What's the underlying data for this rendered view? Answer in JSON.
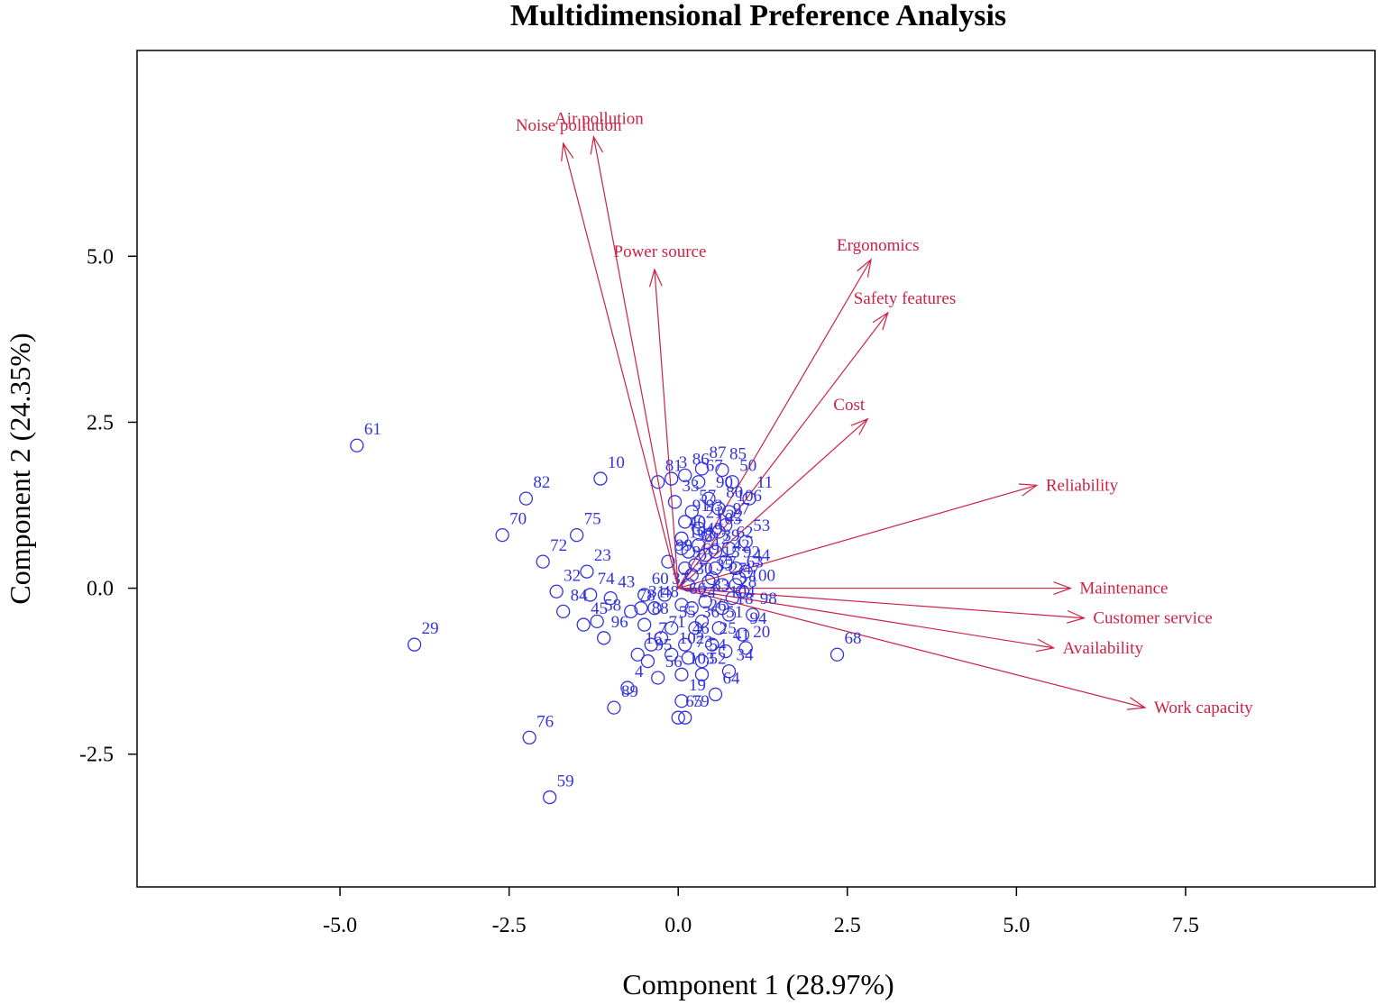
{
  "chart_data": {
    "type": "scatter",
    "subtype": "biplot",
    "title": "Multidimensional Preference Analysis",
    "xlabel": "Component 1 (28.97%)",
    "ylabel": "Component 2 (24.35%)",
    "xlim": [
      -8.0,
      10.3
    ],
    "ylim": [
      -4.5,
      8.1
    ],
    "xticks": [
      "-5.0",
      "-2.5",
      "0.0",
      "2.5",
      "5.0",
      "7.5"
    ],
    "yticks": [
      "-2.5",
      "0.0",
      "2.5",
      "5.0"
    ],
    "grid": false,
    "colors": {
      "points": "#3333dd",
      "vectors": "#cc2244",
      "axes": "#000000"
    },
    "vectors": [
      {
        "name": "Air pollution",
        "x": -1.25,
        "y": 6.8
      },
      {
        "name": "Noise pollution",
        "x": -1.7,
        "y": 6.7
      },
      {
        "name": "Power source",
        "x": -0.35,
        "y": 4.8
      },
      {
        "name": "Ergonomics",
        "x": 2.85,
        "y": 4.95
      },
      {
        "name": "Safety features",
        "x": 3.1,
        "y": 4.15
      },
      {
        "name": "Cost",
        "x": 2.8,
        "y": 2.55
      },
      {
        "name": "Reliability",
        "x": 5.3,
        "y": 1.55
      },
      {
        "name": "Maintenance",
        "x": 5.8,
        "y": 0.0
      },
      {
        "name": "Customer service",
        "x": 6.0,
        "y": -0.45
      },
      {
        "name": "Availability",
        "x": 5.55,
        "y": -0.9
      },
      {
        "name": "Work capacity",
        "x": 6.9,
        "y": -1.8
      }
    ],
    "points": [
      {
        "label": "61",
        "x": -4.75,
        "y": 2.15
      },
      {
        "label": "82",
        "x": -2.25,
        "y": 1.35
      },
      {
        "label": "70",
        "x": -2.6,
        "y": 0.8
      },
      {
        "label": "72",
        "x": -2.0,
        "y": 0.4
      },
      {
        "label": "75",
        "x": -1.5,
        "y": 0.8
      },
      {
        "label": "10",
        "x": -1.15,
        "y": 1.65
      },
      {
        "label": "81",
        "x": -0.3,
        "y": 1.6
      },
      {
        "label": "3",
        "x": -0.1,
        "y": 1.65
      },
      {
        "label": "33",
        "x": -0.05,
        "y": 1.3
      },
      {
        "label": "87",
        "x": 0.35,
        "y": 1.8
      },
      {
        "label": "85",
        "x": 0.65,
        "y": 1.78
      },
      {
        "label": "67",
        "x": 0.3,
        "y": 1.6
      },
      {
        "label": "50",
        "x": 0.8,
        "y": 1.6
      },
      {
        "label": "90",
        "x": 0.45,
        "y": 1.35
      },
      {
        "label": "11",
        "x": 1.05,
        "y": 1.35
      },
      {
        "label": "91",
        "x": 0.1,
        "y": 1.0
      },
      {
        "label": "106",
        "x": 0.75,
        "y": 1.15
      },
      {
        "label": "40",
        "x": 0.05,
        "y": 0.75
      },
      {
        "label": "38",
        "x": 0.15,
        "y": 0.55
      },
      {
        "label": "53",
        "x": 1.0,
        "y": 0.7
      },
      {
        "label": "23",
        "x": -1.35,
        "y": 0.25
      },
      {
        "label": "74",
        "x": -1.3,
        "y": -0.1
      },
      {
        "label": "44",
        "x": 1.0,
        "y": 0.25
      },
      {
        "label": "32",
        "x": -1.8,
        "y": -0.05
      },
      {
        "label": "43",
        "x": -1.0,
        "y": -0.15
      },
      {
        "label": "84",
        "x": -1.7,
        "y": -0.35
      },
      {
        "label": "58",
        "x": -1.2,
        "y": -0.5
      },
      {
        "label": "45",
        "x": -1.4,
        "y": -0.55
      },
      {
        "label": "96",
        "x": -1.1,
        "y": -0.75
      },
      {
        "label": "88",
        "x": -0.5,
        "y": -0.55
      },
      {
        "label": "18",
        "x": 0.75,
        "y": -0.4
      },
      {
        "label": "98",
        "x": 1.1,
        "y": -0.4
      },
      {
        "label": "94",
        "x": 0.95,
        "y": -0.7
      },
      {
        "label": "20",
        "x": 1.0,
        "y": -0.9
      },
      {
        "label": "41",
        "x": 0.7,
        "y": -0.95
      },
      {
        "label": "34",
        "x": 0.75,
        "y": -1.25
      },
      {
        "label": "68",
        "x": 2.35,
        "y": -1.0
      },
      {
        "label": "29",
        "x": -3.9,
        "y": -0.85
      },
      {
        "label": "4",
        "x": -0.75,
        "y": -1.5
      },
      {
        "label": "56",
        "x": -0.3,
        "y": -1.35
      },
      {
        "label": "52",
        "x": 0.35,
        "y": -1.3
      },
      {
        "label": "64",
        "x": 0.55,
        "y": -1.6
      },
      {
        "label": "95",
        "x": -0.45,
        "y": -1.1
      },
      {
        "label": "89",
        "x": -0.95,
        "y": -1.8
      },
      {
        "label": "19",
        "x": 0.05,
        "y": -1.7
      },
      {
        "label": "76",
        "x": -2.2,
        "y": -2.25
      },
      {
        "label": "65",
        "x": 0.0,
        "y": -1.95
      },
      {
        "label": "79",
        "x": 0.1,
        "y": -1.95
      },
      {
        "label": "59",
        "x": -1.9,
        "y": -3.15
      },
      {
        "label": "7",
        "x": -0.4,
        "y": -0.85
      },
      {
        "label": "16",
        "x": -0.6,
        "y": -1.0
      },
      {
        "label": "2",
        "x": 0.2,
        "y": 0.2
      },
      {
        "label": "9",
        "x": 0.1,
        "y": 0.3
      },
      {
        "label": "12",
        "x": 0.4,
        "y": 0.5
      },
      {
        "label": "15",
        "x": 0.55,
        "y": 0.3
      },
      {
        "label": "21",
        "x": 0.3,
        "y": 0.9
      },
      {
        "label": "22",
        "x": 0.6,
        "y": 0.85
      },
      {
        "label": "24",
        "x": 0.2,
        "y": -0.3
      },
      {
        "label": "25",
        "x": 0.5,
        "y": -0.85
      },
      {
        "label": "26",
        "x": 0.35,
        "y": -0.5
      },
      {
        "label": "27",
        "x": 0.65,
        "y": 0.05
      },
      {
        "label": "28",
        "x": 0.8,
        "y": -0.15
      },
      {
        "label": "30",
        "x": 0.15,
        "y": 0.05
      },
      {
        "label": "31",
        "x": -0.55,
        "y": -0.3
      },
      {
        "label": "35",
        "x": 0.45,
        "y": 0.1
      },
      {
        "label": "36",
        "x": 0.25,
        "y": -0.6
      },
      {
        "label": "37",
        "x": -0.2,
        "y": -0.1
      },
      {
        "label": "39",
        "x": 0.55,
        "y": 0.55
      },
      {
        "label": "42",
        "x": 0.7,
        "y": 0.4
      },
      {
        "label": "46",
        "x": 0.1,
        "y": -0.85
      },
      {
        "label": "47",
        "x": 0.85,
        "y": 0.05
      },
      {
        "label": "48",
        "x": -0.35,
        "y": -0.3
      },
      {
        "label": "49",
        "x": 0.3,
        "y": 0.65
      },
      {
        "label": "51",
        "x": 0.6,
        "y": -0.6
      },
      {
        "label": "54",
        "x": 0.35,
        "y": -1.1
      },
      {
        "label": "55",
        "x": -0.1,
        "y": -0.6
      },
      {
        "label": "57",
        "x": 0.2,
        "y": 1.15
      },
      {
        "label": "60",
        "x": -0.5,
        "y": -0.1
      },
      {
        "label": "62",
        "x": 0.75,
        "y": 0.6
      },
      {
        "label": "63",
        "x": 0.9,
        "y": 0.15
      },
      {
        "label": "66",
        "x": 0.05,
        "y": -0.25
      },
      {
        "label": "69",
        "x": 0.25,
        "y": 0.35
      },
      {
        "label": "71",
        "x": -0.25,
        "y": -0.75
      },
      {
        "label": "73",
        "x": 0.15,
        "y": -1.05
      },
      {
        "label": "77",
        "x": 0.5,
        "y": 0.15
      },
      {
        "label": "78",
        "x": -0.7,
        "y": -0.35
      },
      {
        "label": "80",
        "x": 0.6,
        "y": 1.2
      },
      {
        "label": "83",
        "x": 0.4,
        "y": -0.2
      },
      {
        "label": "86",
        "x": 0.1,
        "y": 1.7
      },
      {
        "label": "92",
        "x": 0.85,
        "y": 0.3
      },
      {
        "label": "93",
        "x": 0.3,
        "y": 1.0
      },
      {
        "label": "97",
        "x": 0.7,
        "y": 0.95
      },
      {
        "label": "99",
        "x": -0.15,
        "y": 0.4
      },
      {
        "label": "100",
        "x": 0.95,
        "y": -0.05
      },
      {
        "label": "101",
        "x": 0.05,
        "y": 0.6
      },
      {
        "label": "102",
        "x": -0.1,
        "y": -1.0
      },
      {
        "label": "103",
        "x": 0.05,
        "y": -1.3
      },
      {
        "label": "104",
        "x": 0.65,
        "y": -0.3
      },
      {
        "label": "105",
        "x": 0.45,
        "y": 0.8
      }
    ]
  }
}
